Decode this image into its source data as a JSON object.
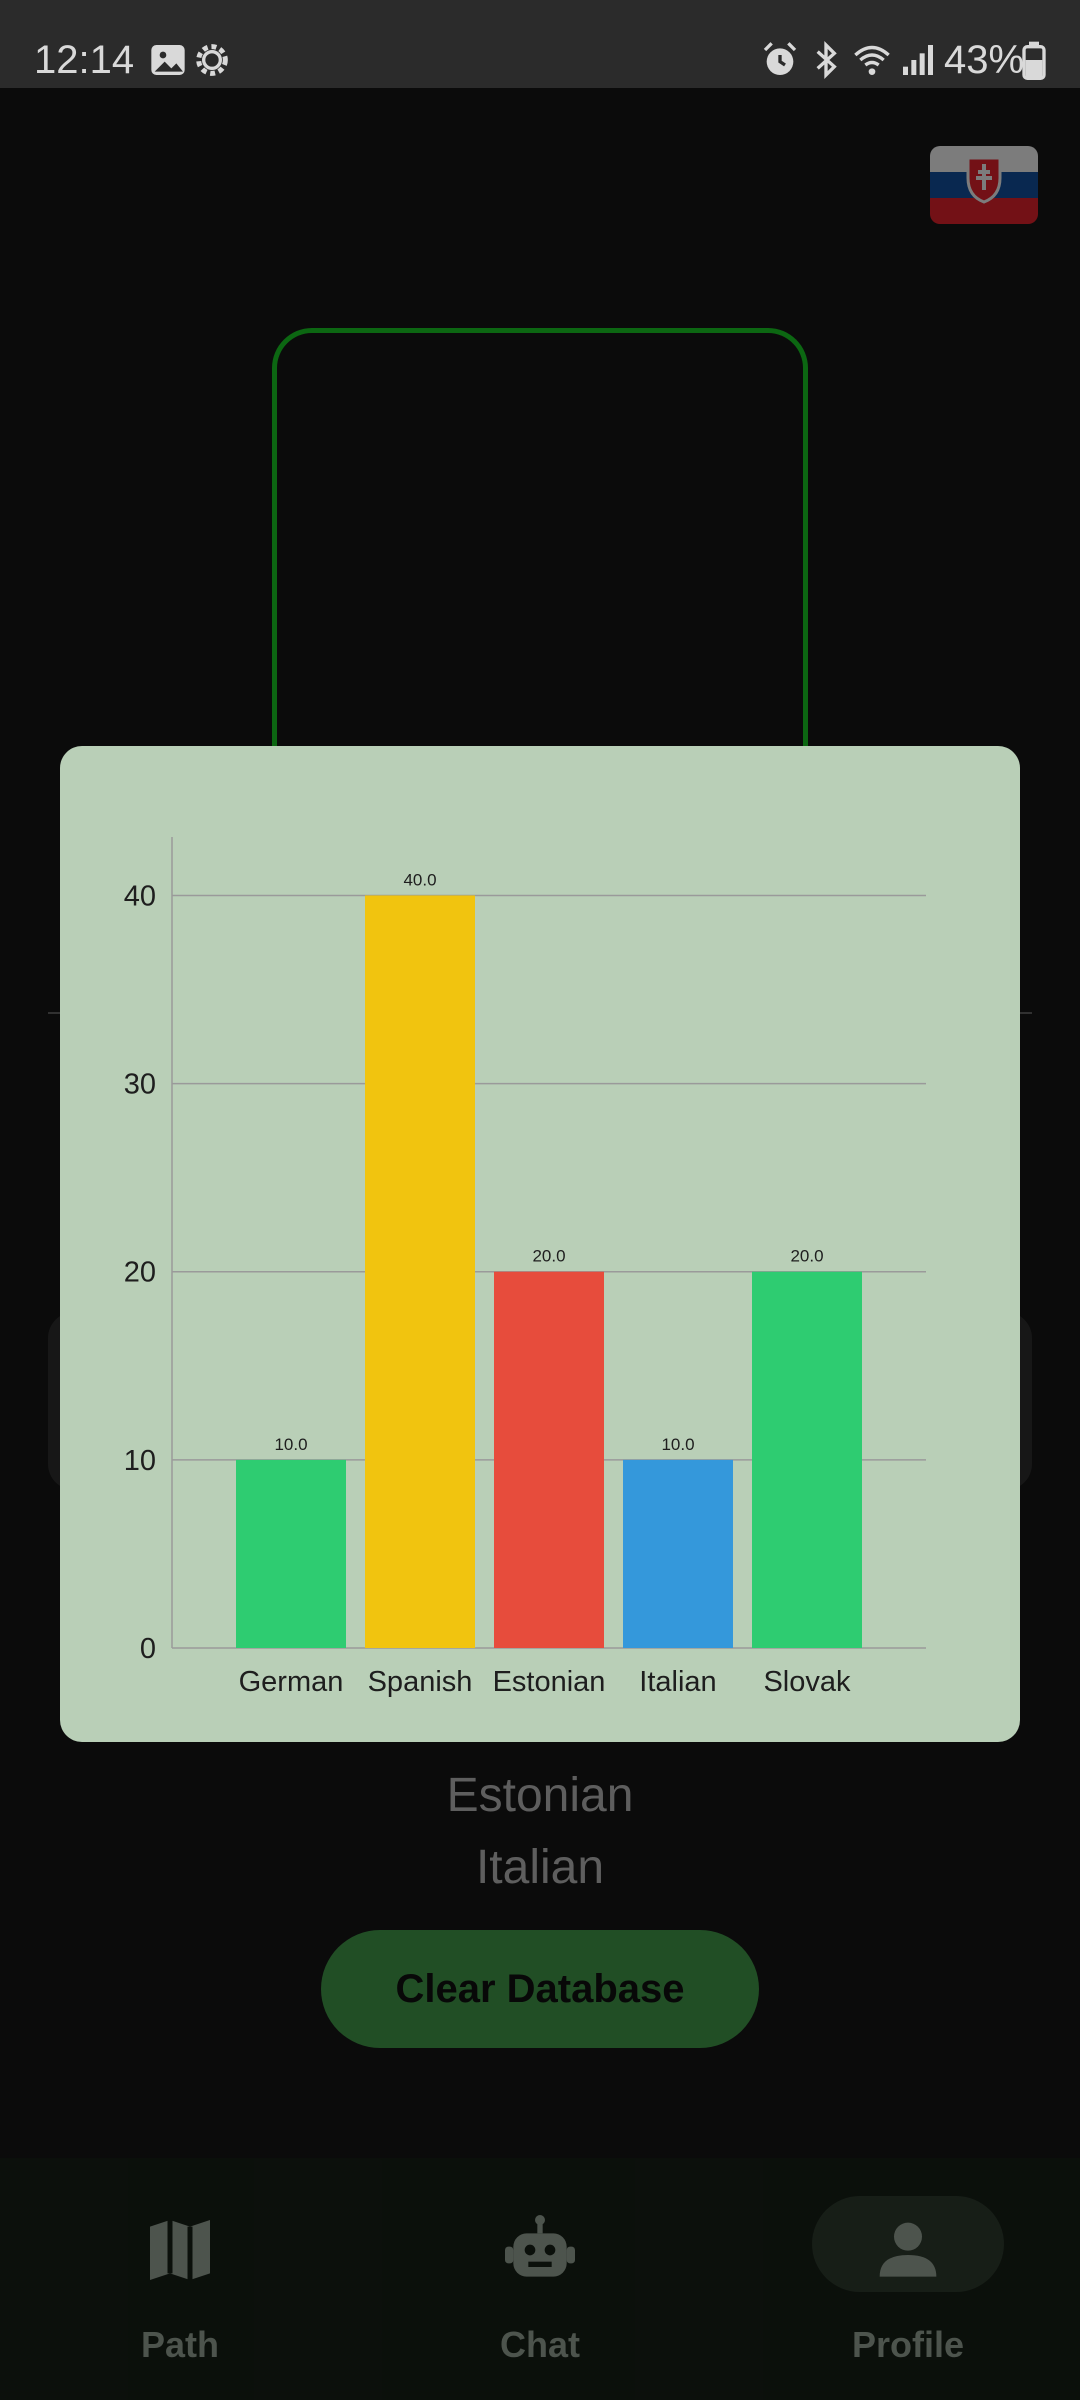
{
  "status_bar": {
    "time": "12:14",
    "battery": "43%",
    "icons": [
      "image-icon",
      "settings-gear-icon",
      "alarm-icon",
      "bluetooth-icon",
      "wifi-icon",
      "signal-icon",
      "battery-icon"
    ]
  },
  "flag": {
    "icon": "slovakia-flag-icon"
  },
  "background": {
    "languages": [
      "Estonian",
      "Italian"
    ],
    "clear_button": "Clear Database"
  },
  "nav": {
    "items": [
      {
        "label": "Path",
        "icon": "map-icon"
      },
      {
        "label": "Chat",
        "icon": "robot-icon"
      },
      {
        "label": "Profile",
        "icon": "person-icon"
      }
    ],
    "selected": "Profile"
  },
  "chart_data": {
    "type": "bar",
    "categories": [
      "German",
      "Spanish",
      "Estonian",
      "Italian",
      "Slovak"
    ],
    "values": [
      10.0,
      40.0,
      20.0,
      10.0,
      20.0
    ],
    "value_labels": [
      "10.0",
      "40.0",
      "20.0",
      "10.0",
      "20.0"
    ],
    "colors": [
      "#2ecc71",
      "#f1c40f",
      "#e74c3c",
      "#3498db",
      "#2ecc71"
    ],
    "yticks": [
      "0",
      "10",
      "20",
      "30",
      "40"
    ],
    "ylim": [
      0,
      43
    ],
    "grid": true,
    "title": "",
    "xlabel": "",
    "ylabel": ""
  }
}
